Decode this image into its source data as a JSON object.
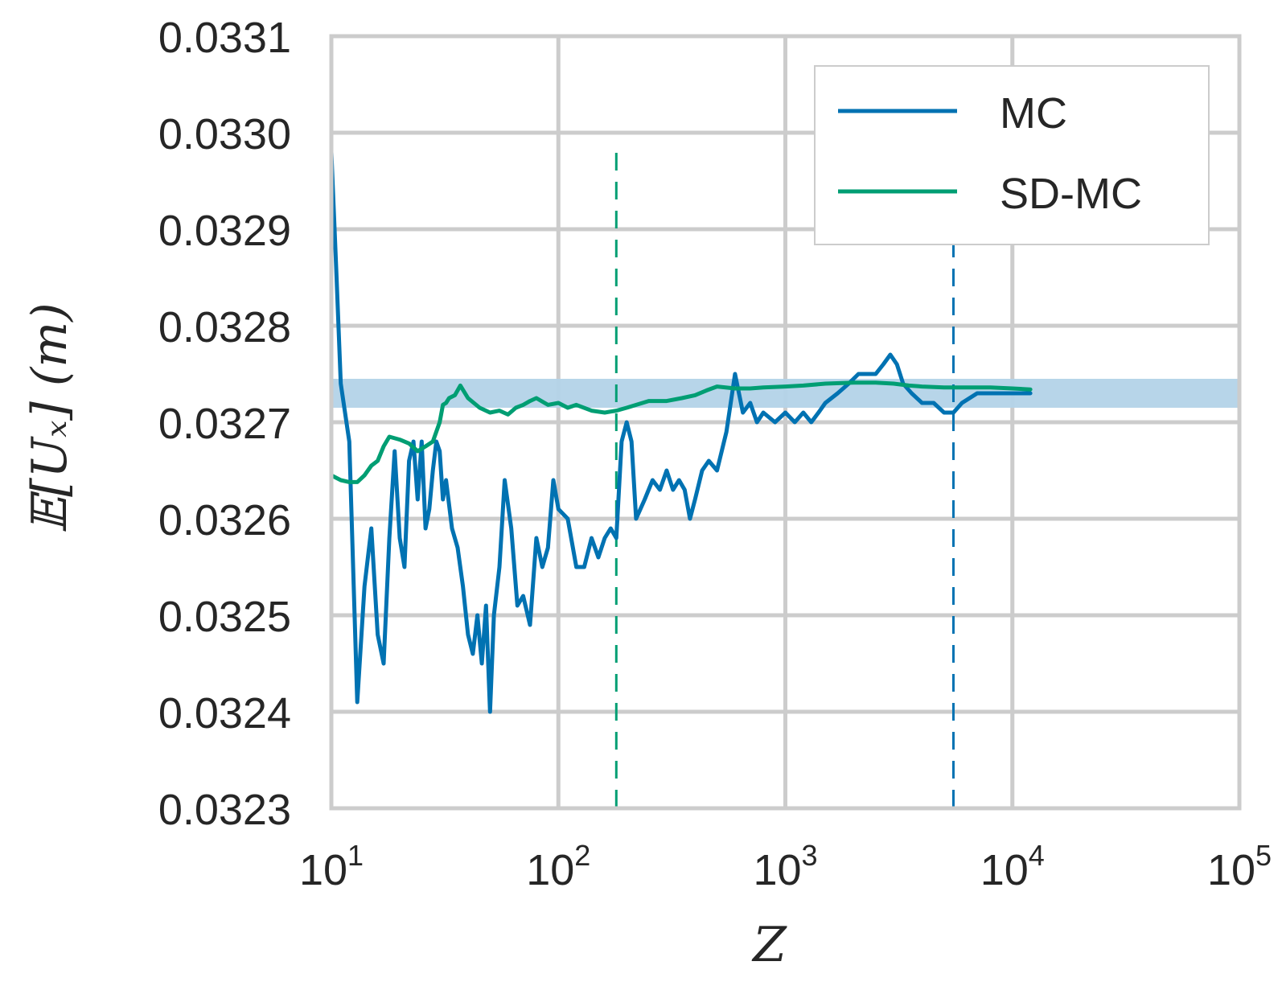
{
  "chart_data": {
    "type": "line",
    "title": "",
    "xlabel": "Z",
    "ylabel": "𝔼[Uₓ] (m)",
    "x_scale": "log",
    "xlim": [
      10,
      100000
    ],
    "ylim": [
      0.0323,
      0.0331
    ],
    "xticks": [
      {
        "value": 10,
        "base": "10",
        "exp": "1"
      },
      {
        "value": 100,
        "base": "10",
        "exp": "2"
      },
      {
        "value": 1000,
        "base": "10",
        "exp": "3"
      },
      {
        "value": 10000,
        "base": "10",
        "exp": "4"
      },
      {
        "value": 100000,
        "base": "10",
        "exp": "5"
      }
    ],
    "yticks": [
      {
        "value": 0.0323,
        "label": "0.0323"
      },
      {
        "value": 0.0324,
        "label": "0.0324"
      },
      {
        "value": 0.0325,
        "label": "0.0325"
      },
      {
        "value": 0.0326,
        "label": "0.0326"
      },
      {
        "value": 0.0327,
        "label": "0.0327"
      },
      {
        "value": 0.0328,
        "label": "0.0328"
      },
      {
        "value": 0.0329,
        "label": "0.0329"
      },
      {
        "value": 0.033,
        "label": "0.0330"
      },
      {
        "value": 0.0331,
        "label": "0.0331"
      }
    ],
    "grid": true,
    "legend_position": "top-right",
    "band": {
      "y_low": 0.032715,
      "y_high": 0.032745,
      "color": "#b3d3e8"
    },
    "vlines": [
      {
        "x": 180,
        "color": "#009e73",
        "style": "dashed"
      },
      {
        "x": 5500,
        "color": "#0072b2",
        "style": "dashed"
      }
    ],
    "series": [
      {
        "name": "MC",
        "color": "#0072b2",
        "x": [
          10,
          10.5,
          11,
          12,
          13,
          14,
          15,
          16,
          17,
          18,
          19,
          20,
          21,
          22,
          23,
          24,
          25,
          26,
          27,
          28,
          29,
          30,
          31,
          32,
          34,
          36,
          38,
          40,
          42,
          44,
          46,
          48,
          50,
          52,
          55,
          58,
          62,
          66,
          70,
          75,
          80,
          85,
          90,
          95,
          100,
          110,
          120,
          130,
          140,
          150,
          160,
          170,
          180,
          190,
          200,
          210,
          220,
          240,
          260,
          280,
          300,
          320,
          340,
          360,
          380,
          400,
          430,
          460,
          500,
          550,
          600,
          650,
          700,
          750,
          800,
          900,
          1000,
          1100,
          1200,
          1300,
          1400,
          1500,
          1700,
          1900,
          2100,
          2300,
          2500,
          2700,
          2900,
          3100,
          3300,
          3600,
          4000,
          4500,
          5000,
          5500,
          6000,
          7000,
          8000,
          9000,
          10000,
          11000,
          12000
        ],
        "values": [
          0.03298,
          0.03286,
          0.03274,
          0.03268,
          0.03241,
          0.03253,
          0.03259,
          0.03248,
          0.03245,
          0.03258,
          0.03267,
          0.03258,
          0.03255,
          0.03266,
          0.03268,
          0.03262,
          0.03268,
          0.03259,
          0.03261,
          0.03265,
          0.03268,
          0.03267,
          0.03262,
          0.03264,
          0.03259,
          0.03257,
          0.03253,
          0.03248,
          0.03246,
          0.0325,
          0.03245,
          0.03251,
          0.0324,
          0.0325,
          0.03255,
          0.03264,
          0.03259,
          0.03251,
          0.03252,
          0.03249,
          0.03258,
          0.03255,
          0.03257,
          0.03264,
          0.03261,
          0.0326,
          0.03255,
          0.03255,
          0.03258,
          0.03256,
          0.03258,
          0.03259,
          0.03258,
          0.03268,
          0.0327,
          0.03268,
          0.0326,
          0.03262,
          0.03264,
          0.03263,
          0.03265,
          0.03263,
          0.03264,
          0.03263,
          0.0326,
          0.03262,
          0.03265,
          0.03266,
          0.03265,
          0.03269,
          0.03275,
          0.03271,
          0.03272,
          0.0327,
          0.03271,
          0.0327,
          0.03271,
          0.0327,
          0.03271,
          0.0327,
          0.03271,
          0.03272,
          0.03273,
          0.03274,
          0.03275,
          0.03275,
          0.03275,
          0.03276,
          0.03277,
          0.03276,
          0.03274,
          0.03273,
          0.03272,
          0.03272,
          0.03271,
          0.03271,
          0.03272,
          0.03273,
          0.03273,
          0.03273,
          0.03273,
          0.03273,
          0.03273
        ]
      },
      {
        "name": "SD-MC",
        "color": "#009e73",
        "x": [
          10,
          11,
          12,
          13,
          14,
          15,
          16,
          17,
          18,
          20,
          22,
          24,
          26,
          28,
          30,
          31,
          32,
          33,
          35,
          37,
          40,
          45,
          50,
          55,
          60,
          65,
          70,
          75,
          80,
          90,
          100,
          110,
          120,
          140,
          160,
          180,
          200,
          250,
          300,
          350,
          400,
          450,
          500,
          600,
          700,
          800,
          1000,
          1200,
          1500,
          2000,
          2500,
          3000,
          3500,
          4000,
          5000,
          6000,
          8000,
          10000,
          12000
        ],
        "values": [
          0.032645,
          0.03264,
          0.032638,
          0.032638,
          0.032645,
          0.032655,
          0.03266,
          0.032675,
          0.032685,
          0.032682,
          0.032678,
          0.03267,
          0.032675,
          0.03268,
          0.0327,
          0.032718,
          0.03272,
          0.032725,
          0.032728,
          0.032738,
          0.032725,
          0.032715,
          0.03271,
          0.032712,
          0.032708,
          0.032715,
          0.032718,
          0.032722,
          0.032725,
          0.032718,
          0.03272,
          0.032715,
          0.032718,
          0.032712,
          0.03271,
          0.032712,
          0.032715,
          0.032722,
          0.032722,
          0.032725,
          0.032728,
          0.032733,
          0.032737,
          0.032735,
          0.032735,
          0.032736,
          0.032737,
          0.032738,
          0.03274,
          0.032741,
          0.032741,
          0.03274,
          0.032738,
          0.032737,
          0.032736,
          0.032736,
          0.032736,
          0.032735,
          0.032734
        ]
      }
    ]
  }
}
